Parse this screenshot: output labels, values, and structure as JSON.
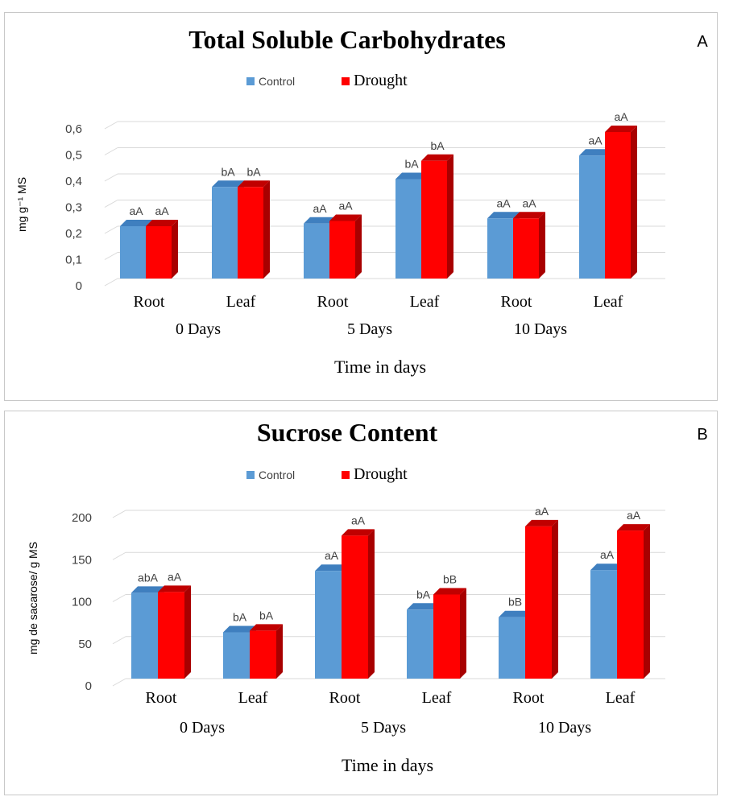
{
  "chart_data": [
    {
      "type": "bar",
      "panel_label": "A",
      "title": "Total Soluble Carbohydrates",
      "ylabel": "mg g⁻¹ MS",
      "xlabel": "Time in days",
      "ylim": [
        0,
        0.6
      ],
      "yticks": [
        "0",
        "0,1",
        "0,2",
        "0,3",
        "0,4",
        "0,5",
        "0,6"
      ],
      "categories": [
        "Root",
        "Leaf",
        "Root",
        "Leaf",
        "Root",
        "Leaf"
      ],
      "groups": [
        "0 Days",
        "5 Days",
        "10 Days"
      ],
      "series": [
        {
          "name": "Control",
          "color": "#5b9bd5",
          "values": [
            0.2,
            0.35,
            0.21,
            0.38,
            0.23,
            0.47
          ],
          "labels": [
            "aA",
            "bA",
            "aA",
            "bA",
            "aA",
            "aA"
          ]
        },
        {
          "name": "Drought",
          "color": "#ff0000",
          "values": [
            0.2,
            0.35,
            0.22,
            0.45,
            0.23,
            0.56
          ],
          "labels": [
            "aA",
            "bA",
            "aA",
            "bA",
            "aA",
            "aA"
          ]
        }
      ],
      "grid": true,
      "legend": "top-center"
    },
    {
      "type": "bar",
      "panel_label": "B",
      "title": "Sucrose Content",
      "ylabel": "mg de sacarose/ g MS",
      "xlabel": "Time in days",
      "ylim": [
        0,
        200
      ],
      "yticks": [
        "0",
        "50",
        "100",
        "150",
        "200"
      ],
      "categories": [
        "Root",
        "Leaf",
        "Root",
        "Leaf",
        "Root",
        "Leaf"
      ],
      "groups": [
        "0 Days",
        "5 Days",
        "10 Days"
      ],
      "series": [
        {
          "name": "Control",
          "color": "#5b9bd5",
          "values": [
            102,
            55,
            128,
            82,
            73,
            129
          ],
          "labels": [
            "abA",
            "bA",
            "aA",
            "bA",
            "bB",
            "aA"
          ]
        },
        {
          "name": "Drought",
          "color": "#ff0000",
          "values": [
            103,
            57,
            170,
            100,
            181,
            176
          ],
          "labels": [
            "aA",
            "bA",
            "aA",
            "bB",
            "aA",
            "aA"
          ]
        }
      ],
      "grid": true,
      "legend": "top-center"
    }
  ]
}
